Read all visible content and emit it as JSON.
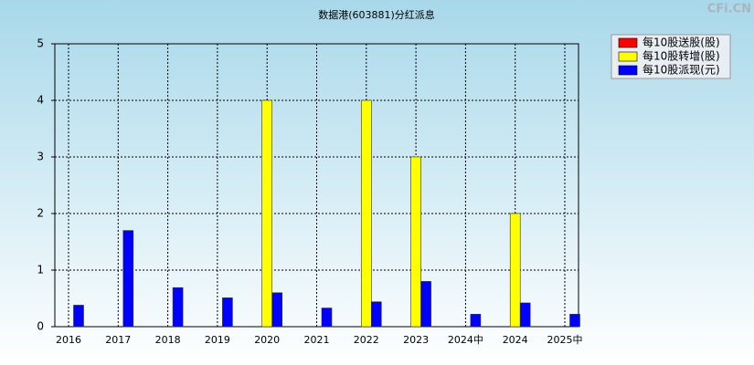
{
  "chart_data": {
    "type": "bar",
    "title": "数据港(603881)分红派息",
    "watermark": "CFi.CN",
    "categories": [
      "2016",
      "2017",
      "2018",
      "2019",
      "2020",
      "2021",
      "2022",
      "2023",
      "2024中",
      "2024",
      "2025中"
    ],
    "series": [
      {
        "name": "每10股送股(股)",
        "color": "#ff0000",
        "values": [
          0,
          0,
          0,
          0,
          0,
          0,
          0,
          0,
          0,
          0,
          0
        ]
      },
      {
        "name": "每10股转增(股)",
        "color": "#ffff00",
        "values": [
          0,
          0,
          0,
          0,
          4,
          0,
          4,
          3,
          0,
          2,
          0
        ]
      },
      {
        "name": "每10股派现(元)",
        "color": "#0000ff",
        "values": [
          0.38,
          1.7,
          0.69,
          0.51,
          0.6,
          0.33,
          0.44,
          0.8,
          0.22,
          0.42,
          0.22
        ]
      }
    ],
    "ylim": [
      0,
      5
    ],
    "yticks": [
      0,
      1,
      2,
      3,
      4,
      5
    ],
    "grid": true,
    "legend": "top-right"
  }
}
